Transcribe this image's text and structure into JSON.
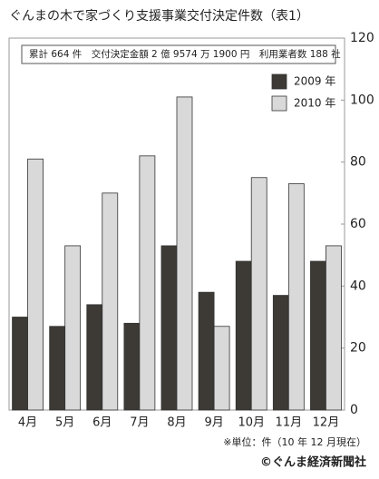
{
  "chart_data": {
    "type": "bar",
    "title": "ぐんまの木で家づくり支援事業交付決定件数（表1）",
    "annotation": "累計 664 件　交付決定金額 2 億 9574 万 1900 円　利用業者数 188 社",
    "note": "※単位：件（10 年 12 月現在）",
    "credit": "©ぐんま経済新聞社",
    "categories": [
      "4月",
      "5月",
      "6月",
      "7月",
      "8月",
      "9月",
      "10月",
      "11月",
      "12月"
    ],
    "series": [
      {
        "name": "2009 年",
        "color": "#3d3a35",
        "values": [
          30,
          27,
          34,
          28,
          53,
          38,
          48,
          37,
          48
        ]
      },
      {
        "name": "2010 年",
        "color": "#d9d9d9",
        "values": [
          81,
          53,
          70,
          82,
          101,
          27,
          75,
          73,
          53
        ]
      }
    ],
    "ylim": [
      0,
      120
    ],
    "yticks": [
      0,
      20,
      40,
      60,
      80,
      100,
      120
    ],
    "legend": "upper right"
  }
}
